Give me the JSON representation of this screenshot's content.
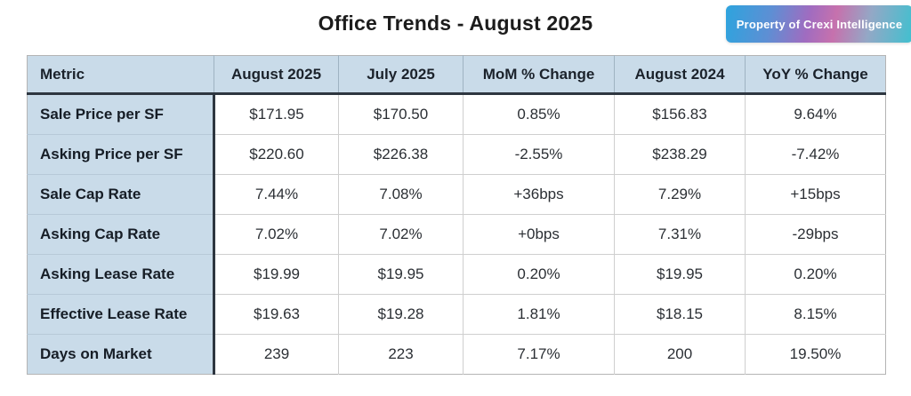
{
  "title": "Office Trends - August 2025",
  "badge": {
    "label": "Property of Crexi Intelligence"
  },
  "colors": {
    "header_bg": "#c9dbe9",
    "dark_border": "#2e3640",
    "light_border": "#cfcfcf",
    "badge_gradient": [
      "#2da4de",
      "#a06cc0",
      "#c671ad",
      "#3fc0cf"
    ],
    "badge_text": "#ffffff"
  },
  "chart_data": {
    "type": "table",
    "title": "Office Trends - August 2025",
    "columns": [
      "Metric",
      "August 2025",
      "July 2025",
      "MoM % Change",
      "August 2024",
      "YoY % Change"
    ],
    "rows": [
      [
        "Sale Price per SF",
        "$171.95",
        "$170.50",
        "0.85%",
        "$156.83",
        "9.64%"
      ],
      [
        "Asking Price per SF",
        "$220.60",
        "$226.38",
        "-2.55%",
        "$238.29",
        "-7.42%"
      ],
      [
        "Sale Cap Rate",
        "7.44%",
        "7.08%",
        "+36bps",
        "7.29%",
        "+15bps"
      ],
      [
        "Asking Cap Rate",
        "7.02%",
        "7.02%",
        "+0bps",
        "7.31%",
        "-29bps"
      ],
      [
        "Asking Lease Rate",
        "$19.99",
        "$19.95",
        "0.20%",
        "$19.95",
        "0.20%"
      ],
      [
        "Effective Lease Rate",
        "$19.63",
        "$19.28",
        "1.81%",
        "$18.15",
        "8.15%"
      ],
      [
        "Days on Market",
        "239",
        "223",
        "7.17%",
        "200",
        "19.50%"
      ]
    ]
  }
}
